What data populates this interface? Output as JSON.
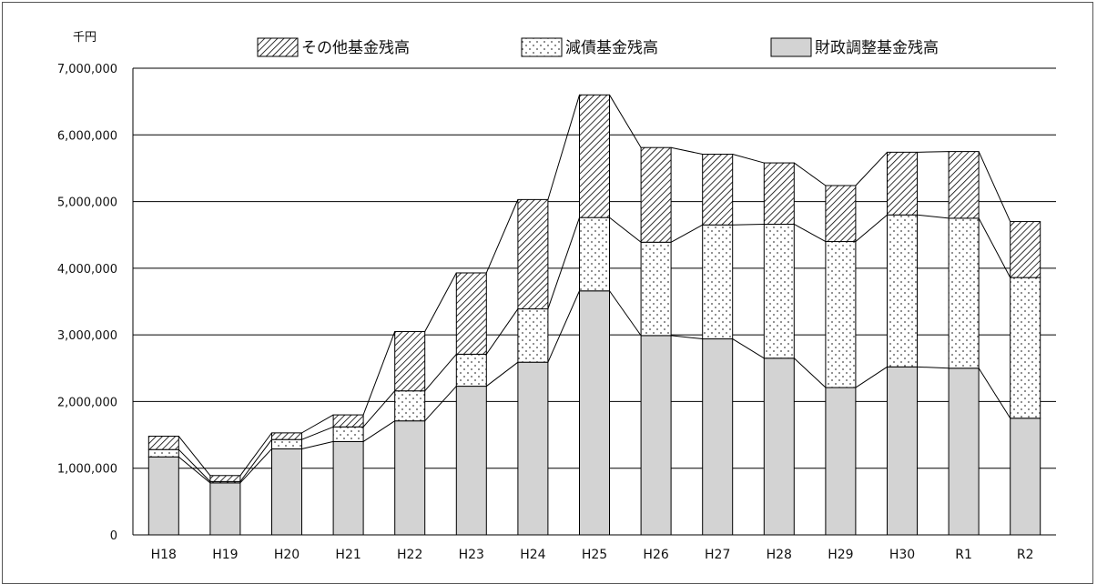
{
  "chart_data": {
    "type": "bar",
    "stacked": true,
    "unit_label": "千円",
    "categories": [
      "H18",
      "H19",
      "H20",
      "H21",
      "H22",
      "H23",
      "H24",
      "H25",
      "H26",
      "H27",
      "H28",
      "H29",
      "H30",
      "R1",
      "R2"
    ],
    "series": [
      {
        "name": "財政調整基金残高",
        "pattern": "solid-gray",
        "values": [
          1170000,
          780000,
          1290000,
          1400000,
          1710000,
          2230000,
          2590000,
          3660000,
          2990000,
          2940000,
          2650000,
          2210000,
          2520000,
          2500000,
          1750000
        ]
      },
      {
        "name": "減債基金残高",
        "pattern": "dots",
        "values": [
          110000,
          20000,
          140000,
          220000,
          450000,
          480000,
          800000,
          1100000,
          1400000,
          1710000,
          2010000,
          2190000,
          2280000,
          2250000,
          2110000
        ]
      },
      {
        "name": "その他基金残高",
        "pattern": "diagonal-hatch",
        "values": [
          200000,
          90000,
          100000,
          180000,
          890000,
          1220000,
          1640000,
          1840000,
          1420000,
          1060000,
          920000,
          840000,
          940000,
          1000000,
          840000
        ]
      }
    ],
    "legend_order": [
      2,
      1,
      0
    ],
    "yticks": [
      0,
      1000000,
      2000000,
      3000000,
      4000000,
      5000000,
      6000000,
      7000000
    ],
    "ytick_labels": [
      "0",
      "1,000,000",
      "2,000,000",
      "3,000,000",
      "4,000,000",
      "5,000,000",
      "6,000,000",
      "7,000,000"
    ],
    "ylim": [
      0,
      7000000
    ],
    "grid": true,
    "connector_lines": true,
    "legend_position": "top"
  },
  "colors": {
    "bar_fill": "#d3d3d3",
    "outline": "#000000",
    "grid": "#000000",
    "dots": "#444444",
    "hatch": "#000000"
  }
}
